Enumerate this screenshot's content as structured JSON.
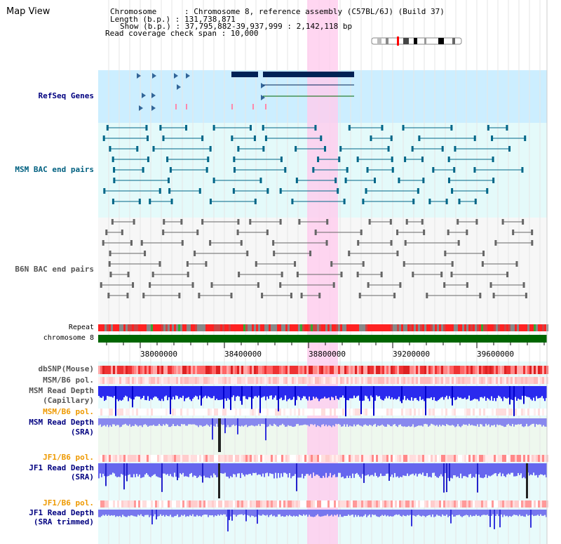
{
  "page": {
    "title": "Map View",
    "info": {
      "chromosome": "Chromosome      : Chromosome 8, reference assembly (C57BL/6J) (Build 37)",
      "length": "Length (b.p.) : 131,738,871",
      "show": "Show (b.p.) : 37,795,882-39,937,999 : 2,142,118 bp",
      "read_coverage": "Read coverage check span : 10,000"
    }
  },
  "tracks": {
    "refseq": "RefSeq Genes",
    "msm_bac": "MSM BAC end pairs",
    "b6n_bac": "B6N BAC end pairs",
    "repeat": "Repeat",
    "chromosome": "chromosome 8",
    "dbsnp": "dbSNP(Mouse)",
    "msm_b6_pol_1": "MSM/B6 pol.",
    "msm_read_depth_cap_1": "MSM Read Depth",
    "msm_read_depth_cap_2": "(Capillary)",
    "msm_b6_pol_2": "MSM/B6 pol.",
    "msm_read_depth_sra_1": "MSM Read Depth",
    "msm_read_depth_sra_2": "(SRA)",
    "jf1_b6_pol_1": "JF1/B6 pol.",
    "jf1_read_depth_sra_1": "JF1 Read Depth",
    "jf1_read_depth_sra_2": "(SRA)",
    "jf1_b6_pol_2": "JF1/B6 pol.",
    "jf1_read_depth_trim_1": "JF1 Read Depth",
    "jf1_read_depth_trim_2": "(SRA trimmed)"
  },
  "axis": {
    "ticks": [
      "38000000",
      "38400000",
      "38800000",
      "39200000",
      "39600000"
    ]
  },
  "colors": {
    "refseq_band": "#cceeff",
    "msm_band": "#e4fafa",
    "highlight": "#ffccee",
    "gene_dark": "#002255",
    "msm_feature": "#006688",
    "b6n_feature": "#666666",
    "chromosome_bar": "#006600",
    "depth_blue": "#3333ee",
    "depth_light": "#8888ee"
  }
}
